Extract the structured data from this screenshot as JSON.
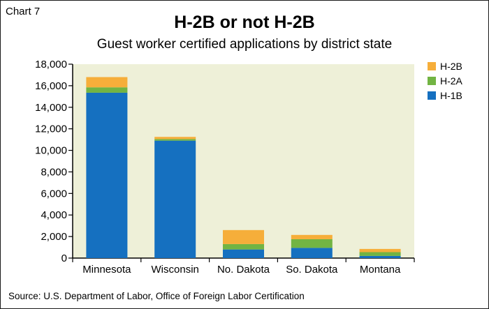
{
  "chart_label": "Chart 7",
  "source": "Source: U.S. Department of Labor, Office of Foreign Labor Certification",
  "colors": {
    "plot_bg": "#eef0d8",
    "H-1B": "#1570c0",
    "H-2A": "#72b443",
    "H-2B": "#f6ae3a"
  },
  "chart_data": {
    "type": "bar",
    "stacked": true,
    "title": "H-2B or not H-2B",
    "subtitle": "Guest worker certified applications by district state",
    "categories": [
      "Minnesota",
      "Wisconsin",
      "No. Dakota",
      "So. Dakota",
      "Montana"
    ],
    "series": [
      {
        "name": "H-1B",
        "values": [
          15350,
          10900,
          800,
          950,
          200
        ]
      },
      {
        "name": "H-2A",
        "values": [
          500,
          150,
          500,
          800,
          350
        ]
      },
      {
        "name": "H-2B",
        "values": [
          950,
          200,
          1300,
          400,
          300
        ]
      }
    ],
    "legend_order": [
      "H-2B",
      "H-2A",
      "H-1B"
    ],
    "legend_position": "top-right",
    "ylim": [
      0,
      18000
    ],
    "yticks": [
      0,
      2000,
      4000,
      6000,
      8000,
      10000,
      12000,
      14000,
      16000,
      18000
    ],
    "ytick_labels": [
      "0",
      "2,000",
      "4,000",
      "6,000",
      "8,000",
      "10,000",
      "12,000",
      "14,000",
      "16,000",
      "18,000"
    ],
    "xlabel": "",
    "ylabel": "",
    "grid": false
  }
}
